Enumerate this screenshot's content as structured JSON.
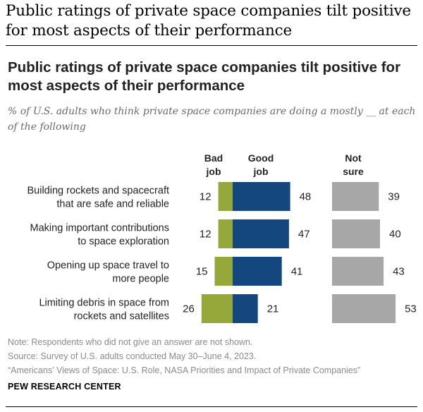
{
  "page_heading": "Public ratings of private space companies tilt positive for most aspects of their performance",
  "chart_data": {
    "type": "bar",
    "title": "Public ratings of private space companies tilt positive for most aspects of their performance",
    "subtitle": "% of U.S. adults who think private space companies are doing a mostly __ at each of the following",
    "columns": {
      "bad": "Bad\njob",
      "good": "Good\njob",
      "not_sure": "Not\nsure"
    },
    "categories": [
      [
        "Building rockets and spacecraft",
        "that are safe and reliable"
      ],
      [
        "Making important contributions",
        "to space exploration"
      ],
      [
        "Opening up space travel to",
        "more people"
      ],
      [
        "Limiting debris in space from",
        "rockets and satellites"
      ]
    ],
    "series": [
      {
        "name": "Bad job",
        "values": [
          12,
          12,
          15,
          26
        ],
        "color": "#97a83a"
      },
      {
        "name": "Good job",
        "values": [
          48,
          47,
          41,
          21
        ],
        "color": "#15477f"
      },
      {
        "name": "Not sure",
        "values": [
          39,
          40,
          43,
          53
        ],
        "color": "#a7a7a7"
      }
    ]
  },
  "footer": {
    "note": "Note: Respondents who did not give an answer are not shown.",
    "source": "Source: Survey of U.S. adults conducted May 30–June 4, 2023.",
    "report": "“Americans’ Views of Space: U.S. Role, NASA Priorities and Impact of Private Companies”"
  },
  "brand": "PEW RESEARCH CENTER"
}
